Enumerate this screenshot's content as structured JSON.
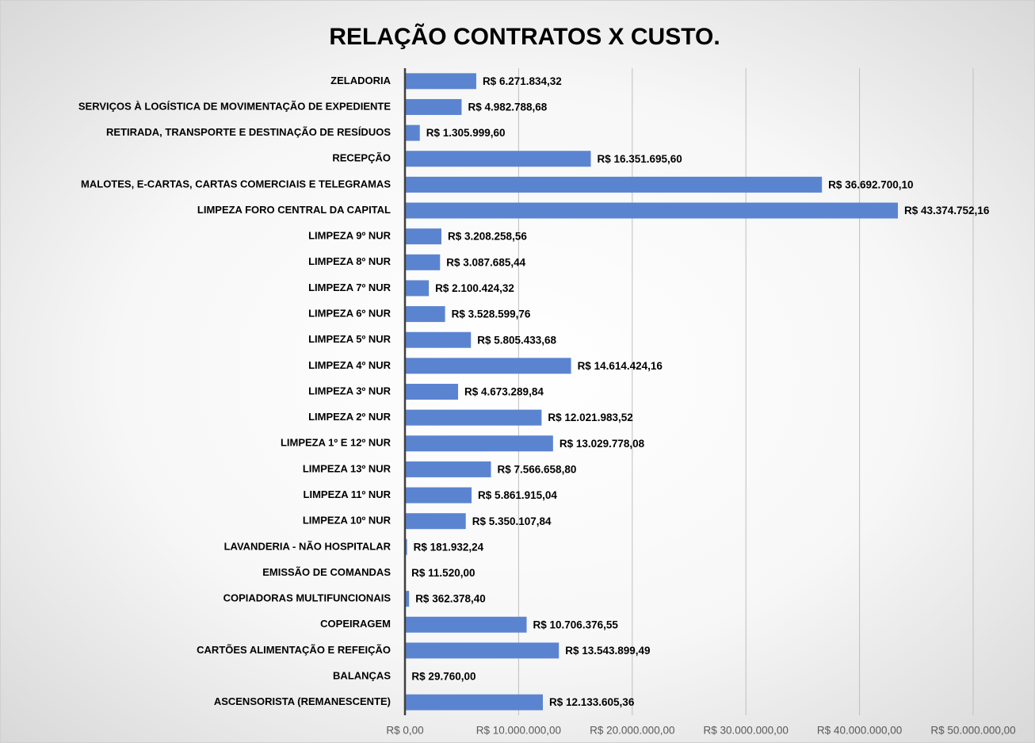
{
  "chart_data": {
    "type": "bar",
    "orientation": "horizontal",
    "title": "RELAÇÃO CONTRATOS X CUSTO.",
    "categories": [
      "ZELADORIA",
      "SERVIÇOS À LOGÍSTICA DE MOVIMENTAÇÃO DE EXPEDIENTE",
      "RETIRADA, TRANSPORTE E DESTINAÇÃO DE RESÍDUOS",
      "RECEPÇÃO",
      "MALOTES, E-CARTAS, CARTAS COMERCIAIS E TELEGRAMAS",
      "LIMPEZA FORO CENTRAL DA CAPITAL",
      "LIMPEZA 9º NUR",
      "LIMPEZA 8º NUR",
      "LIMPEZA 7º NUR",
      "LIMPEZA 6º NUR",
      "LIMPEZA 5º NUR",
      "LIMPEZA 4º NUR",
      "LIMPEZA 3º NUR",
      "LIMPEZA 2º NUR",
      "LIMPEZA 1º E 12º NUR",
      "LIMPEZA 13º NUR",
      "LIMPEZA 11º NUR",
      "LIMPEZA 10º NUR",
      "LAVANDERIA - NÃO HOSPITALAR",
      "EMISSÃO DE COMANDAS",
      "COPIADORAS MULTIFUNCIONAIS",
      "COPEIRAGEM",
      "CARTÕES ALIMENTAÇÃO E REFEIÇÃO",
      "BALANÇAS",
      "ASCENSORISTA (REMANESCENTE)"
    ],
    "values": [
      6271834.32,
      4982788.68,
      1305999.6,
      16351695.6,
      36692700.1,
      43374752.16,
      3208258.56,
      3087685.44,
      2100424.32,
      3528599.76,
      5805433.68,
      14614424.16,
      4673289.84,
      12021983.52,
      13029778.08,
      7566658.8,
      5861915.04,
      5350107.84,
      181932.24,
      11520.0,
      362378.4,
      10706376.55,
      13543899.49,
      29760.0,
      12133605.36
    ],
    "value_labels": [
      "R$ 6.271.834,32",
      "R$ 4.982.788,68",
      "R$ 1.305.999,60",
      "R$ 16.351.695,60",
      "R$ 36.692.700,10",
      "R$ 43.374.752,16",
      "R$ 3.208.258,56",
      "R$ 3.087.685,44",
      "R$ 2.100.424,32",
      "R$ 3.528.599,76",
      "R$ 5.805.433,68",
      "R$ 14.614.424,16",
      "R$ 4.673.289,84",
      "R$ 12.021.983,52",
      "R$ 13.029.778,08",
      "R$ 7.566.658,80",
      "R$ 5.861.915,04",
      "R$ 5.350.107,84",
      "R$ 181.932,24",
      "R$ 11.520,00",
      "R$ 362.378,40",
      "R$ 10.706.376,55",
      "R$ 13.543.899,49",
      "R$ 29.760,00",
      "R$ 12.133.605,36"
    ],
    "color": "#5b84d0",
    "xlim": [
      0,
      50000000
    ],
    "xticks": [
      {
        "value": 0,
        "label": "R$ 0,00"
      },
      {
        "value": 10000000,
        "label": "R$ 10.000.000,00"
      },
      {
        "value": 20000000,
        "label": "R$ 20.000.000,00"
      },
      {
        "value": 30000000,
        "label": "R$ 30.000.000,00"
      },
      {
        "value": 40000000,
        "label": "R$ 40.000.000,00"
      },
      {
        "value": 50000000,
        "label": "R$ 50.000.000,00"
      }
    ],
    "grid": true
  }
}
